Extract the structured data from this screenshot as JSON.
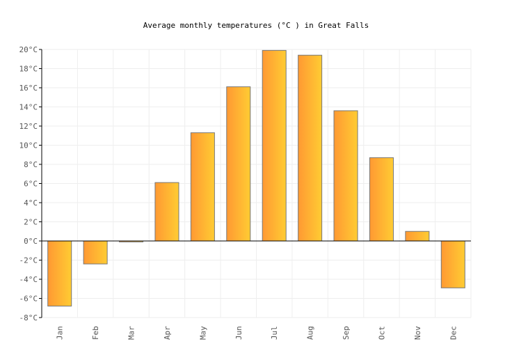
{
  "chart_data": {
    "type": "bar",
    "title": "Average monthly temperatures (°C ) in Great Falls",
    "categories": [
      "Jan",
      "Feb",
      "Mar",
      "Apr",
      "May",
      "Jun",
      "Jul",
      "Aug",
      "Sep",
      "Oct",
      "Nov",
      "Dec"
    ],
    "values": [
      -6.8,
      -2.4,
      -0.1,
      6.1,
      11.3,
      16.1,
      19.9,
      19.4,
      13.6,
      8.7,
      1.0,
      -4.9
    ],
    "unit": "°C",
    "ylim": [
      -8,
      20
    ],
    "yticks": [
      -8,
      -6,
      -4,
      -2,
      0,
      2,
      4,
      6,
      8,
      10,
      12,
      14,
      16,
      18,
      20
    ],
    "grid": true,
    "colors": {
      "bar_start": "#ff9933",
      "bar_end": "#ffcc33",
      "bar_border": "#777777",
      "grid": "#eeeeee"
    }
  }
}
